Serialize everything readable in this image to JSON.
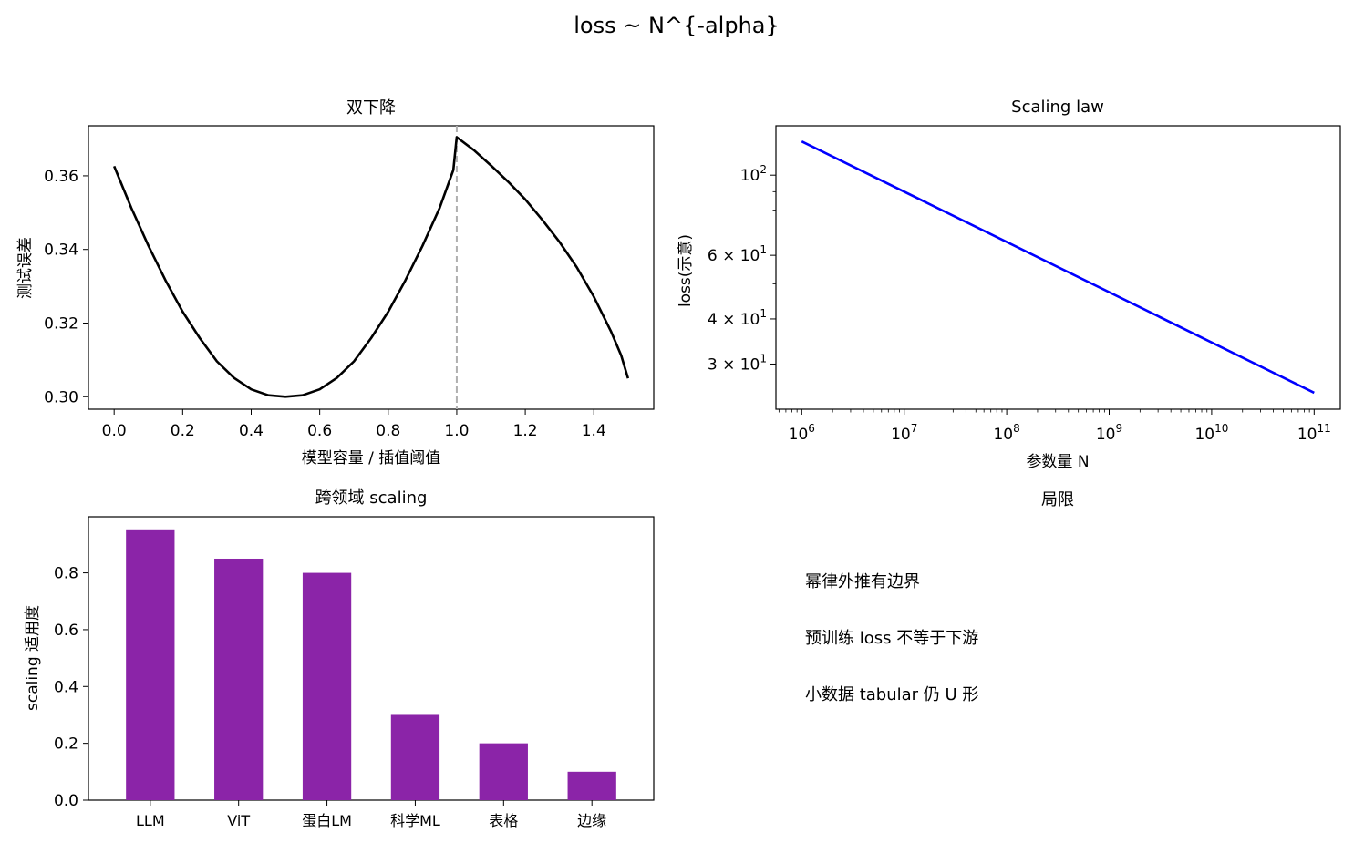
{
  "figure": {
    "suptitle": "loss ~ N^{-alpha}"
  },
  "chart_data": [
    {
      "type": "line",
      "title": "双下降",
      "xlabel": "模型容量 / 插值阈值",
      "ylabel": "测试误差",
      "xlim": [
        -0.075,
        1.575
      ],
      "ylim": [
        0.2966,
        0.3736
      ],
      "xticks": [
        "0.0",
        "0.2",
        "0.4",
        "0.6",
        "0.8",
        "1.0",
        "1.2",
        "1.4"
      ],
      "yticks": [
        "0.30",
        "0.32",
        "0.34",
        "0.36"
      ],
      "reference_line": {
        "x": 1.0,
        "style": "dashed",
        "color": "#b0b0b0"
      },
      "series": [
        {
          "color": "#000000",
          "x": [
            0.0,
            0.05,
            0.1,
            0.15,
            0.2,
            0.25,
            0.3,
            0.35,
            0.4,
            0.45,
            0.5,
            0.55,
            0.6,
            0.65,
            0.7,
            0.75,
            0.8,
            0.85,
            0.9,
            0.95,
            0.99,
            1.0,
            1.05,
            1.1,
            1.15,
            1.2,
            1.25,
            1.3,
            1.35,
            1.4,
            1.45,
            1.48,
            1.5
          ],
          "y": [
            0.3626,
            0.3513,
            0.341,
            0.3316,
            0.3231,
            0.3159,
            0.3096,
            0.3051,
            0.302,
            0.3004,
            0.3,
            0.3004,
            0.302,
            0.3051,
            0.3096,
            0.3159,
            0.3231,
            0.3316,
            0.341,
            0.3513,
            0.3616,
            0.3705,
            0.367,
            0.3628,
            0.3584,
            0.3536,
            0.348,
            0.342,
            0.3352,
            0.3272,
            0.3178,
            0.3112,
            0.305
          ]
        }
      ]
    },
    {
      "type": "line",
      "title": "Scaling law",
      "xlabel": "参数量 N",
      "ylabel": "loss(示意)",
      "xscale": "log",
      "yscale": "log",
      "xlim": [
        560000,
        180000000000
      ],
      "ylim": [
        22.5,
        137
      ],
      "xticks": [
        {
          "base": "10",
          "exp": "6",
          "value": 1000000
        },
        {
          "base": "10",
          "exp": "7",
          "value": 10000000
        },
        {
          "base": "10",
          "exp": "8",
          "value": 100000000
        },
        {
          "base": "10",
          "exp": "9",
          "value": 1000000000
        },
        {
          "base": "10",
          "exp": "10",
          "value": 10000000000
        },
        {
          "base": "10",
          "exp": "11",
          "value": 100000000000
        }
      ],
      "yticks": [
        {
          "prefix": "",
          "base": "10",
          "exp": "2",
          "value": 100
        },
        {
          "prefix": "6 × ",
          "base": "10",
          "exp": "1",
          "value": 60
        },
        {
          "prefix": "4 × ",
          "base": "10",
          "exp": "1",
          "value": 40
        },
        {
          "prefix": "3 × ",
          "base": "10",
          "exp": "1",
          "value": 30
        }
      ],
      "series": [
        {
          "color": "#0000ff",
          "x": [
            1000000,
            100000000000
          ],
          "y": [
            124.0,
            25.0
          ]
        }
      ]
    },
    {
      "type": "bar",
      "title": "跨领域 scaling",
      "xlabel": "",
      "ylabel": "scaling 适用度",
      "ylim": [
        0,
        0.9975
      ],
      "yticks": [
        "0.0",
        "0.2",
        "0.4",
        "0.6",
        "0.8"
      ],
      "color": "#8b24a8",
      "categories": [
        "LLM",
        "ViT",
        "蛋白LM",
        "科学ML",
        "表格",
        "边缘"
      ],
      "values": [
        0.95,
        0.85,
        0.8,
        0.3,
        0.2,
        0.1
      ]
    }
  ],
  "notes_panel": {
    "title": "局限",
    "lines": [
      "幂律外推有边界",
      "预训练 loss 不等于下游",
      "小数据 tabular 仍 U 形"
    ]
  }
}
